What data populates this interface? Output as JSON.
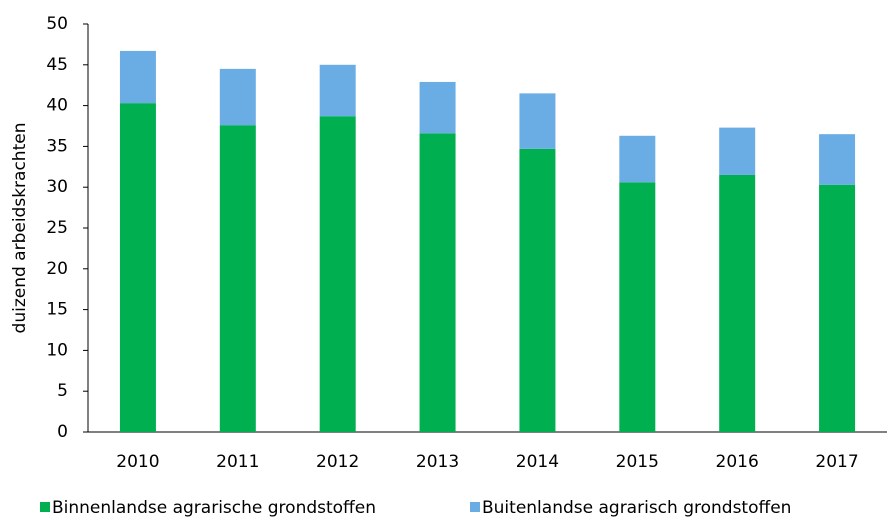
{
  "chart_data": {
    "type": "stacked_bar",
    "y_label": "duizend arbeidskrachten",
    "categories": [
      "2010",
      "2011",
      "2012",
      "2013",
      "2014",
      "2015",
      "2016",
      "2017"
    ],
    "series": [
      {
        "name": "Binnenlandse agrarische grondstoffen",
        "color": "#00b050",
        "values": [
          40.3,
          37.6,
          38.7,
          36.6,
          34.7,
          30.6,
          31.5,
          30.3
        ]
      },
      {
        "name": "Buitenlandse agrarisch grondstoffen",
        "color": "#6aade4",
        "values": [
          6.4,
          6.9,
          6.3,
          6.3,
          6.8,
          5.7,
          5.8,
          6.2
        ]
      }
    ],
    "ylim": [
      0,
      50
    ],
    "yticks": [
      0,
      5,
      10,
      15,
      20,
      25,
      30,
      35,
      40,
      45,
      50
    ],
    "grid": false,
    "legend": "bottom"
  }
}
